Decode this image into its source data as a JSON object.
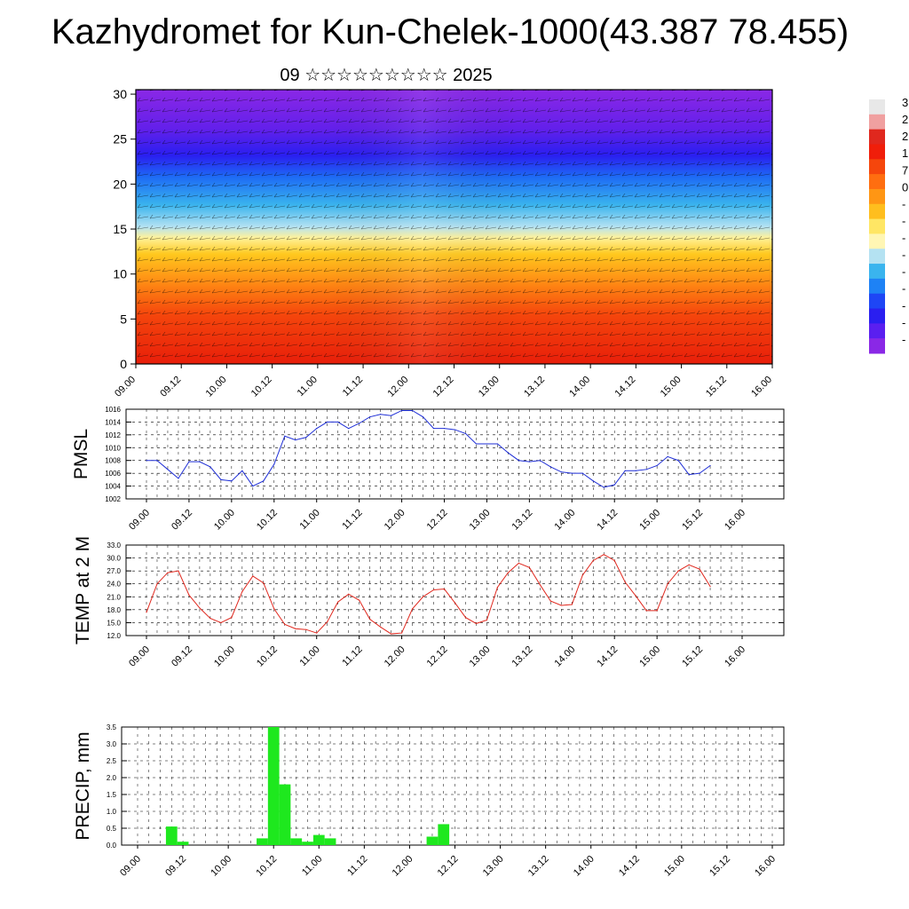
{
  "title": "Kazhydromet for Kun-Chelek-1000(43.387 78.455)",
  "subtitle": "09 ☆☆☆☆☆☆☆☆☆ 2025",
  "colorbar": {
    "visible_labels": [
      "3",
      "2",
      "2",
      "1",
      "7",
      "0",
      "-",
      "-",
      "-",
      "-",
      "-",
      "-",
      "-",
      "-",
      "-"
    ]
  },
  "chart_data": [
    {
      "type": "heatmap",
      "name_ref": "cross-section",
      "x_tick_labels": [
        "09.00",
        "09.12",
        "10.00",
        "10.12",
        "11.00",
        "11.12",
        "12.00",
        "12.12",
        "13.00",
        "13.12",
        "14.00",
        "14.12",
        "15.00",
        "15.12",
        "16.00"
      ],
      "y_tick_labels": [
        "0",
        "5",
        "10",
        "15",
        "20",
        "25",
        "30"
      ],
      "ylim": [
        0,
        30.5
      ],
      "x_hours_range": [
        0,
        168
      ],
      "description_of_field": "temperature shading high (red) near surface, cold (purple) aloft, with wind arrows overlaid",
      "color_scale": [
        "#7e1fe8",
        "#2a1ff5",
        "#1f6af5",
        "#35b8ee",
        "#b8e4f2",
        "#fff6a0",
        "#ffd21e",
        "#ffa014",
        "#ff5a0a",
        "#f01e0a",
        "#e0e0e0"
      ]
    },
    {
      "type": "line",
      "ylabel": "PMSL",
      "ylim": [
        1002,
        1016
      ],
      "y_ticks": [
        1002,
        1004,
        1006,
        1008,
        1010,
        1012,
        1014,
        1016
      ],
      "x_tick_labels": [
        "09.00",
        "09.12",
        "10.00",
        "10.12",
        "11.00",
        "11.12",
        "12.00",
        "12.12",
        "13.00",
        "13.12",
        "14.00",
        "14.12",
        "15.00",
        "15.12",
        "16.00"
      ],
      "color": "#1f2fd6",
      "x_hours": [
        0,
        3,
        6,
        9,
        12,
        15,
        18,
        21,
        24,
        27,
        30,
        33,
        36,
        39,
        42,
        45,
        48,
        51,
        54,
        57,
        60,
        63,
        66,
        69,
        72,
        75,
        78,
        81,
        84,
        87,
        90,
        93,
        96,
        99,
        102,
        105,
        108,
        111,
        114,
        117,
        120,
        123,
        126,
        129,
        132,
        135,
        138,
        141,
        144,
        147,
        150,
        153,
        156,
        159
      ],
      "values": [
        1008,
        1008,
        1006.6,
        1005.2,
        1007.8,
        1007.8,
        1007,
        1005,
        1004.8,
        1006.4,
        1004,
        1004.8,
        1007.4,
        1011.8,
        1011.2,
        1011.6,
        1013,
        1014,
        1014,
        1013,
        1013.8,
        1014.8,
        1015.2,
        1015,
        1015.8,
        1015.8,
        1014.8,
        1013,
        1013,
        1012.8,
        1012.2,
        1010.6,
        1010.6,
        1010.6,
        1009.2,
        1008,
        1007.8,
        1008,
        1007,
        1006.2,
        1006,
        1006,
        1004.8,
        1003.8,
        1004.2,
        1006.4,
        1006.4,
        1006.6,
        1007.2,
        1008.6,
        1008,
        1005.8,
        1006,
        1007.2
      ]
    },
    {
      "type": "line",
      "ylabel": "TEMP at 2 M",
      "ylim": [
        12,
        33
      ],
      "y_ticks": [
        "12.0",
        "15.0",
        "18.0",
        "21.0",
        "24.0",
        "27.0",
        "30.0",
        "33.0"
      ],
      "x_tick_labels": [
        "09.00",
        "09.12",
        "10.00",
        "10.12",
        "11.00",
        "11.12",
        "12.00",
        "12.12",
        "13.00",
        "13.12",
        "14.00",
        "14.12",
        "15.00",
        "15.12",
        "16.00"
      ],
      "color": "#e0281e",
      "x_hours": [
        0,
        3,
        6,
        9,
        12,
        15,
        18,
        21,
        24,
        27,
        30,
        33,
        36,
        39,
        42,
        45,
        48,
        51,
        54,
        57,
        60,
        63,
        66,
        69,
        72,
        75,
        78,
        81,
        84,
        87,
        90,
        93,
        96,
        99,
        102,
        105,
        108,
        111,
        114,
        117,
        120,
        123,
        126,
        129,
        132,
        135,
        138,
        141,
        144,
        147,
        150,
        153,
        156,
        159
      ],
      "values": [
        17.4,
        24,
        26.6,
        27,
        21.4,
        18.4,
        16,
        15,
        16.2,
        22.2,
        25.8,
        24.2,
        18.2,
        14.6,
        13.6,
        13.4,
        12.6,
        15.2,
        19.8,
        21.6,
        20.2,
        15.8,
        14,
        12.4,
        12.6,
        18.2,
        21,
        22.6,
        22.8,
        19.6,
        16.2,
        14.8,
        15.6,
        23.2,
        26.6,
        28.8,
        27.8,
        23.8,
        20,
        19,
        19.2,
        26,
        29.4,
        30.8,
        29.4,
        24.4,
        21.2,
        17.8,
        17.8,
        24,
        27,
        28.4,
        27.4,
        23.4
      ]
    },
    {
      "type": "bar",
      "ylabel": "PRECIP, mm",
      "ylim": [
        0,
        3.5
      ],
      "y_ticks": [
        "0.0",
        "0.5",
        "1.0",
        "1.5",
        "2.0",
        "2.5",
        "3.0",
        "3.5"
      ],
      "x_tick_labels": [
        "09.00",
        "09.12",
        "10.00",
        "10.12",
        "11.00",
        "11.12",
        "12.00",
        "12.12",
        "13.00",
        "13.12",
        "14.00",
        "14.12",
        "15.00",
        "15.12",
        "16.00"
      ],
      "color": "#1ee81e",
      "x_hours": [
        9,
        12,
        33,
        36,
        39,
        42,
        45,
        48,
        51,
        54,
        78,
        81
      ],
      "values": [
        0.55,
        0.1,
        0.2,
        3.5,
        1.8,
        0.2,
        0.1,
        0.3,
        0.2,
        0.0,
        0.25,
        0.62
      ]
    }
  ]
}
